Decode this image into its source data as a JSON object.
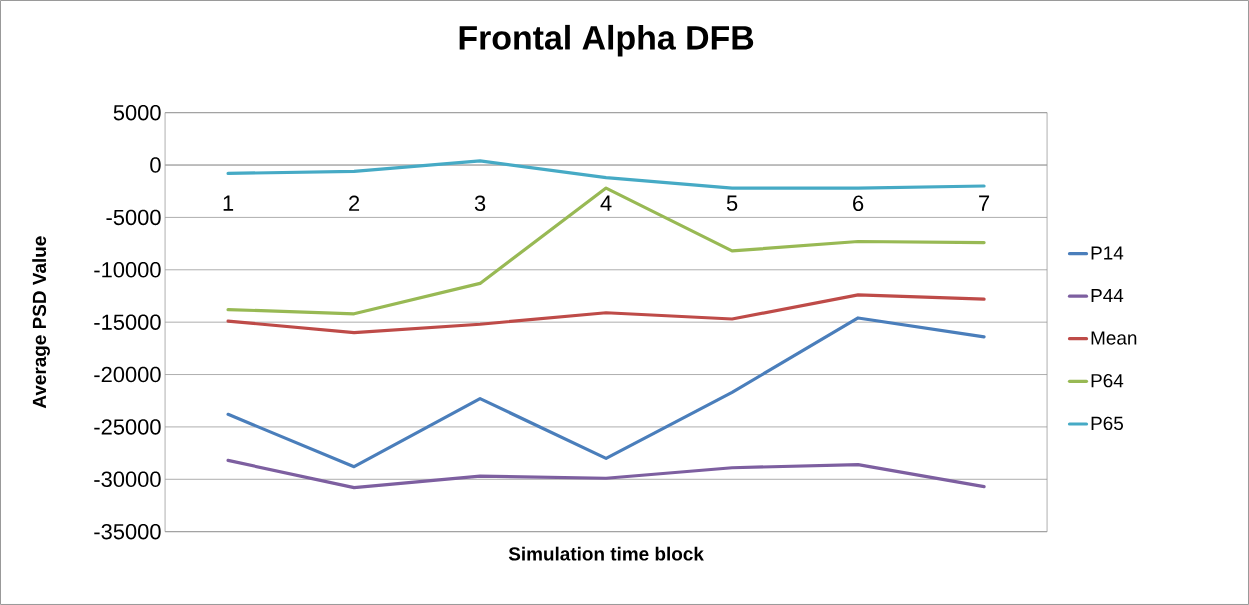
{
  "chart_data": {
    "type": "line",
    "title": "Frontal Alpha DFB",
    "xlabel": "Simulation time block",
    "ylabel": "Average PSD Value",
    "categories": [
      "1",
      "2",
      "3",
      "4",
      "5",
      "6",
      "7"
    ],
    "series": [
      {
        "name": "P14",
        "color": "#4a7ebb",
        "values": [
          -23800,
          -28800,
          -22300,
          -28000,
          -21700,
          -14600,
          -16400
        ]
      },
      {
        "name": "P44",
        "color": "#7d5fa0",
        "values": [
          -28200,
          -30800,
          -29700,
          -29900,
          -28900,
          -28600,
          -30700
        ]
      },
      {
        "name": "Mean",
        "color": "#be4b48",
        "values": [
          -14900,
          -16000,
          -15200,
          -14100,
          -14700,
          -12400,
          -12800
        ]
      },
      {
        "name": "P64",
        "color": "#98b954",
        "values": [
          -13800,
          -14200,
          -11300,
          -2200,
          -8200,
          -7300,
          -7400
        ]
      },
      {
        "name": "P65",
        "color": "#46aac5",
        "values": [
          -800,
          -600,
          400,
          -1200,
          -2200,
          -2200,
          -2000
        ]
      }
    ],
    "ylim": [
      -35000,
      5000
    ],
    "yticks": [
      -35000,
      -30000,
      -25000,
      -20000,
      -15000,
      -10000,
      -5000,
      0,
      5000
    ],
    "grid": "y",
    "legend": "right"
  }
}
